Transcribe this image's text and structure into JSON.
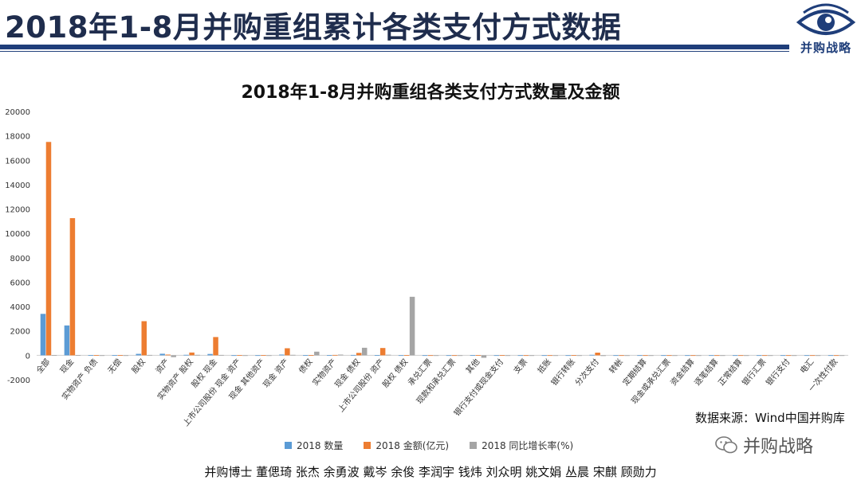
{
  "page": {
    "title": "2018年1-8月并购重组累计各类支付方式数据",
    "logo_text": "并购战略",
    "source": "数据来源：Wind中国并购库",
    "watermark": "并购战略",
    "authors": "并购博士 董偲琦 张杰 余勇波 戴岑 余俊 李润宇 钱炜 刘众明 姚文娟 丛晨 宋麒 顾勋力",
    "colors": {
      "title_rule": "#1f3e7a",
      "series_count": "#5b9bd5",
      "series_amount": "#ed7d31",
      "series_growth": "#a5a5a5"
    }
  },
  "chart_data": {
    "type": "bar",
    "title": "2018年1-8月并购重组各类支付方式数量及金额",
    "xlabel": "",
    "ylabel": "",
    "ylim": [
      -2000,
      20000
    ],
    "yticks": [
      -2000,
      0,
      2000,
      4000,
      6000,
      8000,
      10000,
      12000,
      14000,
      16000,
      18000,
      20000
    ],
    "grid": false,
    "legend_position": "bottom",
    "categories": [
      "全部",
      "现金",
      "实物资产 负债",
      "无偿",
      "股权",
      "资产",
      "实物资产 股权",
      "股权 现金",
      "上市公司股份 现金 资产",
      "现金 其他资产",
      "现金 资产",
      "债权",
      "实物资产",
      "现金 债权",
      "上市公司股份 资产",
      "股权 债权",
      "承兑汇票",
      "现款和承兑汇票",
      "其他",
      "银行支付或现金支付",
      "支票",
      "抵账",
      "银行转账",
      "分次支付",
      "转帐",
      "定期结算",
      "现金或承兑汇票",
      "资金结算",
      "逐笔结算",
      "正常结算",
      "银行汇票",
      "银行支付",
      "电汇",
      "一次性付款"
    ],
    "series": [
      {
        "name": "2018 数量",
        "color": "#5b9bd5",
        "values": [
          3400,
          2450,
          10,
          20,
          120,
          130,
          40,
          110,
          5,
          5,
          60,
          10,
          10,
          30,
          10,
          5,
          5,
          5,
          10,
          5,
          5,
          5,
          5,
          40,
          5,
          5,
          5,
          5,
          5,
          5,
          5,
          5,
          5,
          5
        ]
      },
      {
        "name": "2018 金额(亿元)",
        "color": "#ed7d31",
        "values": [
          17500,
          11250,
          20,
          10,
          2800,
          60,
          230,
          1500,
          20,
          20,
          580,
          20,
          30,
          200,
          600,
          20,
          5,
          5,
          20,
          10,
          5,
          5,
          10,
          220,
          5,
          5,
          5,
          5,
          5,
          5,
          5,
          5,
          5,
          5
        ]
      },
      {
        "name": "2018 同比增长率(%)",
        "color": "#a5a5a5",
        "values": [
          20,
          20,
          -50,
          -50,
          30,
          -150,
          40,
          30,
          0,
          0,
          40,
          300,
          60,
          620,
          50,
          4800,
          -30,
          -30,
          -200,
          -50,
          -20,
          -30,
          -40,
          -60,
          -40,
          -40,
          -40,
          -40,
          -40,
          -40,
          -40,
          -40,
          -40,
          -40
        ]
      }
    ]
  }
}
